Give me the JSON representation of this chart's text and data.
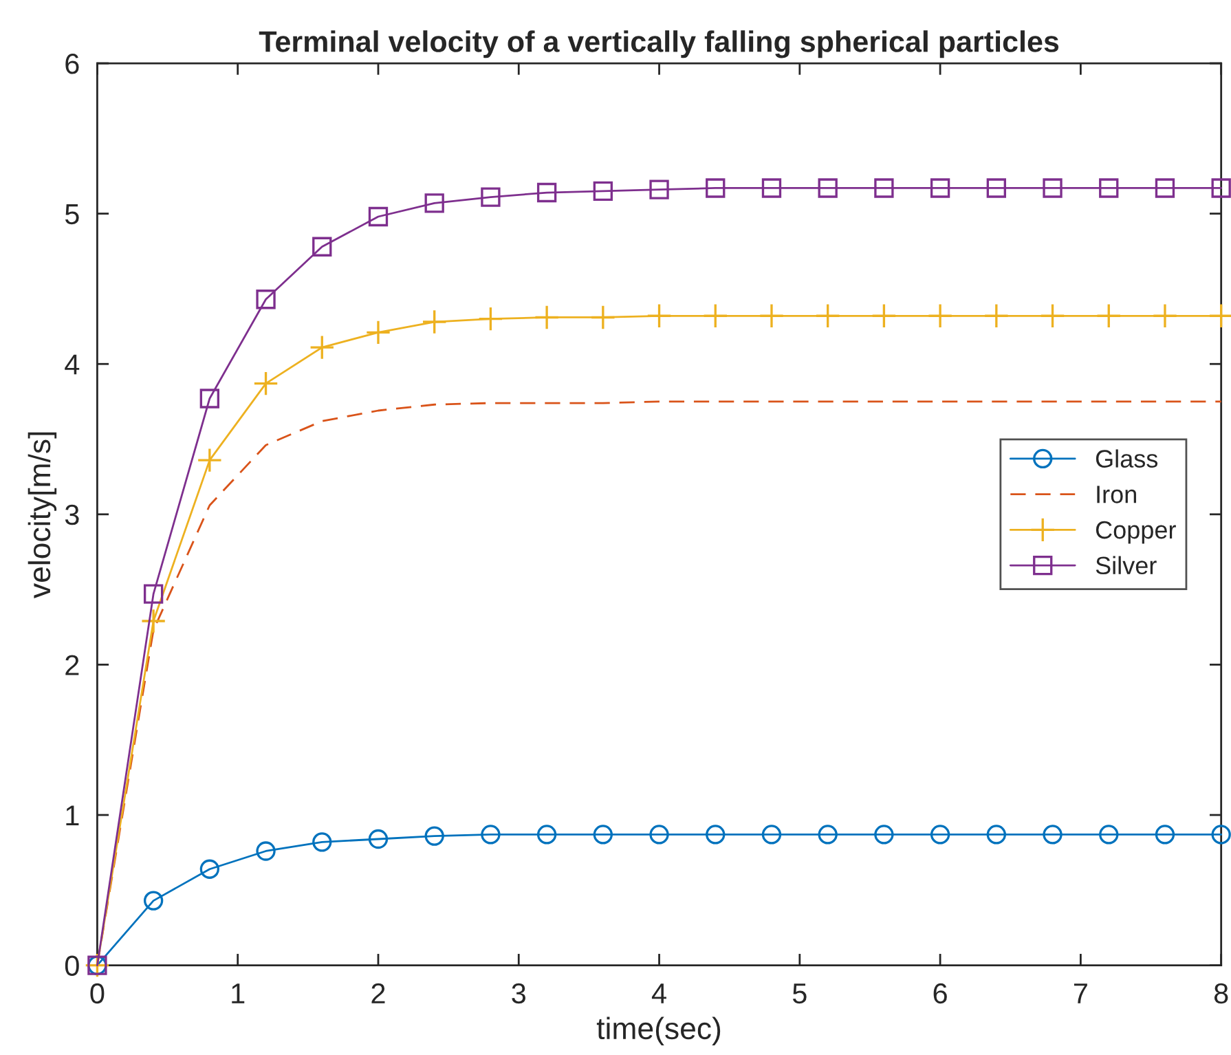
{
  "chart_data": {
    "type": "line",
    "title": "Terminal velocity of a vertically falling spherical particles",
    "xlabel": "time(sec)",
    "ylabel": "velocity[m/s]",
    "x": [
      0,
      0.4,
      0.8,
      1.2,
      1.6,
      2.0,
      2.4,
      2.8,
      3.2,
      3.6,
      4.0,
      4.4,
      4.8,
      5.2,
      5.6,
      6.0,
      6.4,
      6.8,
      7.2,
      7.6,
      8.0
    ],
    "series": [
      {
        "name": "Glass",
        "color": "#0072bd",
        "marker": "circle",
        "line_style": "solid",
        "values": [
          0,
          0.43,
          0.64,
          0.76,
          0.82,
          0.84,
          0.86,
          0.87,
          0.87,
          0.87,
          0.87,
          0.87,
          0.87,
          0.87,
          0.87,
          0.87,
          0.87,
          0.87,
          0.87,
          0.87,
          0.87
        ]
      },
      {
        "name": "Iron",
        "color": "#d95319",
        "marker": "none",
        "line_style": "dashed",
        "values": [
          0,
          2.23,
          3.06,
          3.46,
          3.62,
          3.69,
          3.73,
          3.74,
          3.74,
          3.74,
          3.75,
          3.75,
          3.75,
          3.75,
          3.75,
          3.75,
          3.75,
          3.75,
          3.75,
          3.75,
          3.75
        ]
      },
      {
        "name": "Copper",
        "color": "#edb120",
        "marker": "cross",
        "line_style": "solid",
        "values": [
          0,
          2.29,
          3.36,
          3.87,
          4.11,
          4.21,
          4.28,
          4.3,
          4.31,
          4.31,
          4.32,
          4.32,
          4.32,
          4.32,
          4.32,
          4.32,
          4.32,
          4.32,
          4.32,
          4.32,
          4.32
        ]
      },
      {
        "name": "Silver",
        "color": "#7e2f8e",
        "marker": "square",
        "line_style": "solid",
        "values": [
          0,
          2.47,
          3.77,
          4.43,
          4.78,
          4.98,
          5.07,
          5.11,
          5.14,
          5.15,
          5.16,
          5.17,
          5.17,
          5.17,
          5.17,
          5.17,
          5.17,
          5.17,
          5.17,
          5.17,
          5.17
        ]
      }
    ],
    "xlim": [
      0,
      8
    ],
    "xticks": [
      0,
      1,
      2,
      3,
      4,
      5,
      6,
      7,
      8
    ],
    "ylim": [
      0,
      6
    ],
    "yticks": [
      0,
      1,
      2,
      3,
      4,
      5,
      6
    ],
    "grid": false,
    "legend": "right"
  }
}
